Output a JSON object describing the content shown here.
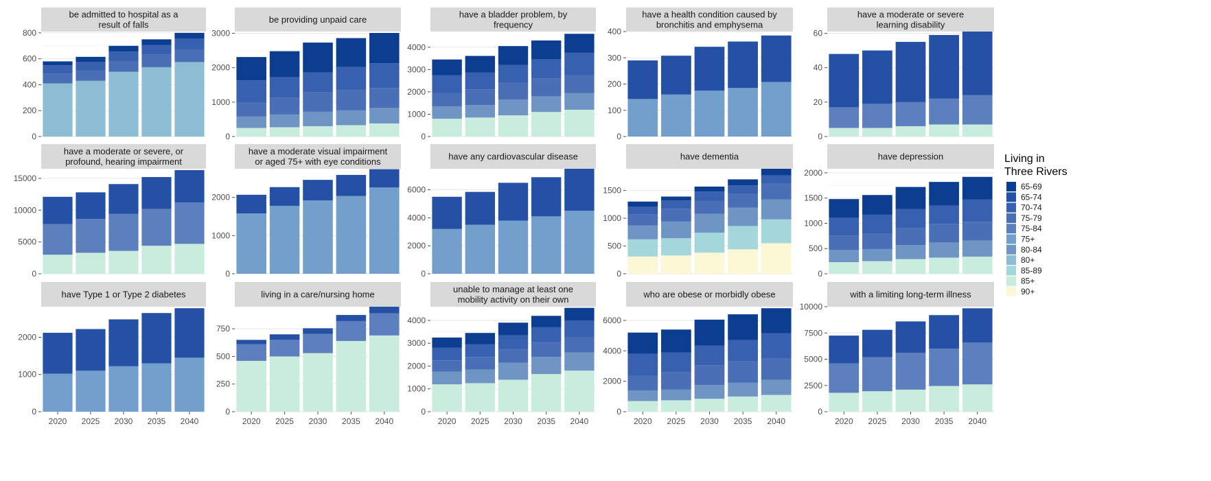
{
  "legend": {
    "title_lines": [
      "Living in",
      "Three Rivers"
    ],
    "items": [
      {
        "label": "65-69",
        "color": "#0b3d91"
      },
      {
        "label": "65-74",
        "color": "#2450a6"
      },
      {
        "label": "70-74",
        "color": "#3760ae"
      },
      {
        "label": "75-79",
        "color": "#4a6fb6"
      },
      {
        "label": "75-84",
        "color": "#5c7fbd"
      },
      {
        "label": "75+",
        "color": "#729fcb"
      },
      {
        "label": "80-84",
        "color": "#6f95c5"
      },
      {
        "label": "80+",
        "color": "#8dbdd2"
      },
      {
        "label": "85-89",
        "color": "#a3d7dc"
      },
      {
        "label": "85+",
        "color": "#c8eddd"
      },
      {
        "label": "90+",
        "color": "#fcf8d6"
      }
    ]
  },
  "chart_data": [
    {
      "type": "bar",
      "stacked": true,
      "title_lines": [
        "be admitted to hospital as a",
        "result of falls"
      ],
      "categories": [
        "2020",
        "2025",
        "2030",
        "2035",
        "2040"
      ],
      "yticks": [
        0,
        200,
        400,
        600,
        800
      ],
      "ytick_labels": [
        "0",
        "200",
        "400",
        "600",
        "800"
      ],
      "ylim": [
        0,
        810
      ],
      "series": [
        {
          "name": "80+",
          "values": [
            410,
            430,
            500,
            535,
            575
          ]
        },
        {
          "name": "75-79",
          "values": [
            75,
            75,
            80,
            100,
            95
          ]
        },
        {
          "name": "70-74",
          "values": [
            65,
            70,
            75,
            70,
            85
          ]
        },
        {
          "name": "65-69",
          "values": [
            30,
            40,
            45,
            45,
            45
          ]
        }
      ]
    },
    {
      "type": "bar",
      "stacked": true,
      "title_lines": [
        "be providing unpaid care"
      ],
      "categories": [
        "2020",
        "2025",
        "2030",
        "2035",
        "2040"
      ],
      "yticks": [
        0,
        1000,
        2000,
        3000
      ],
      "ytick_labels": [
        "0",
        "1000",
        "2000",
        "3000"
      ],
      "ylim": [
        0,
        3050
      ],
      "series": [
        {
          "name": "85+",
          "values": [
            250,
            270,
            300,
            330,
            380
          ]
        },
        {
          "name": "80-84",
          "values": [
            330,
            370,
            420,
            430,
            450
          ]
        },
        {
          "name": "75-79",
          "values": [
            400,
            480,
            560,
            580,
            580
          ]
        },
        {
          "name": "70-74",
          "values": [
            650,
            600,
            580,
            680,
            720
          ]
        },
        {
          "name": "65-69",
          "values": [
            680,
            760,
            870,
            840,
            880
          ]
        }
      ]
    },
    {
      "type": "bar",
      "stacked": true,
      "title_lines": [
        "have a bladder problem, by",
        "frequency"
      ],
      "categories": [
        "2020",
        "2025",
        "2030",
        "2035",
        "2040"
      ],
      "yticks": [
        0,
        1000,
        2000,
        3000,
        4000
      ],
      "ytick_labels": [
        "0",
        "1000",
        "2000",
        "3000",
        "4000"
      ],
      "ylim": [
        0,
        4700
      ],
      "series": [
        {
          "name": "85+",
          "values": [
            800,
            850,
            950,
            1100,
            1200
          ]
        },
        {
          "name": "80-84",
          "values": [
            550,
            560,
            700,
            700,
            750
          ]
        },
        {
          "name": "75-79",
          "values": [
            600,
            700,
            750,
            800,
            800
          ]
        },
        {
          "name": "70-74",
          "values": [
            800,
            750,
            800,
            850,
            1000
          ]
        },
        {
          "name": "65-69",
          "values": [
            700,
            750,
            850,
            850,
            850
          ]
        }
      ]
    },
    {
      "type": "bar",
      "stacked": true,
      "title_lines": [
        "have a health condition caused by",
        "bronchitis and emphysema"
      ],
      "categories": [
        "2020",
        "2025",
        "2030",
        "2035",
        "2040"
      ],
      "yticks": [
        0,
        100,
        200,
        300,
        400
      ],
      "ytick_labels": [
        "0",
        "100",
        "200",
        "300",
        "400"
      ],
      "ylim": [
        0,
        400
      ],
      "series": [
        {
          "name": "75+",
          "values": [
            143,
            160,
            175,
            185,
            208
          ]
        },
        {
          "name": "65-74",
          "values": [
            147,
            148,
            167,
            177,
            177
          ]
        }
      ]
    },
    {
      "type": "bar",
      "stacked": true,
      "title_lines": [
        "have a moderate or severe",
        "learning disability"
      ],
      "categories": [
        "2020",
        "2025",
        "2030",
        "2035",
        "2040"
      ],
      "yticks": [
        0,
        20,
        40,
        60
      ],
      "ytick_labels": [
        "0",
        "20",
        "40",
        "60"
      ],
      "ylim": [
        0,
        61
      ],
      "series": [
        {
          "name": "85+",
          "values": [
            5,
            5,
            6,
            7,
            7
          ]
        },
        {
          "name": "75-84",
          "values": [
            12,
            14,
            14,
            15,
            17
          ]
        },
        {
          "name": "65-74",
          "values": [
            31,
            31,
            35,
            37,
            37
          ]
        }
      ]
    },
    {
      "type": "bar",
      "stacked": true,
      "title_lines": [
        "have a moderate or severe, or",
        "profound, hearing impairment"
      ],
      "categories": [
        "2020",
        "2025",
        "2030",
        "2035",
        "2040"
      ],
      "yticks": [
        0,
        5000,
        10000,
        15000
      ],
      "ytick_labels": [
        "0",
        "5000",
        "10000",
        "15000"
      ],
      "ylim": [
        0,
        16500
      ],
      "series": [
        {
          "name": "85+",
          "values": [
            3000,
            3300,
            3600,
            4400,
            4700
          ]
        },
        {
          "name": "75-84",
          "values": [
            4800,
            5300,
            5800,
            5800,
            6500
          ]
        },
        {
          "name": "65-74",
          "values": [
            4300,
            4200,
            4700,
            5000,
            5100
          ]
        }
      ]
    },
    {
      "type": "bar",
      "stacked": true,
      "title_lines": [
        "have a moderate visual impairment",
        "or aged 75+ with eye conditions"
      ],
      "categories": [
        "2020",
        "2025",
        "2030",
        "2035",
        "2040"
      ],
      "yticks": [
        0,
        1000,
        2000
      ],
      "ytick_labels": [
        "0",
        "1000",
        "2000"
      ],
      "ylim": [
        0,
        2750
      ],
      "series": [
        {
          "name": "75+",
          "values": [
            1580,
            1780,
            1920,
            2040,
            2260
          ]
        },
        {
          "name": "65-74",
          "values": [
            490,
            490,
            540,
            550,
            480
          ]
        }
      ]
    },
    {
      "type": "bar",
      "stacked": true,
      "title_lines": [
        "have any cardiovascular disease"
      ],
      "categories": [
        "2020",
        "2025",
        "2030",
        "2035",
        "2040"
      ],
      "yticks": [
        0,
        2000,
        4000,
        6000
      ],
      "ytick_labels": [
        "0",
        "2000",
        "4000",
        "6000"
      ],
      "ylim": [
        0,
        7500
      ],
      "series": [
        {
          "name": "75+",
          "values": [
            3200,
            3500,
            3800,
            4100,
            4500
          ]
        },
        {
          "name": "65-74",
          "values": [
            2300,
            2350,
            2700,
            2800,
            3000
          ]
        }
      ]
    },
    {
      "type": "bar",
      "stacked": true,
      "title_lines": [
        "have dementia"
      ],
      "categories": [
        "2020",
        "2025",
        "2030",
        "2035",
        "2040"
      ],
      "yticks": [
        0,
        500,
        1000,
        1500
      ],
      "ytick_labels": [
        "0",
        "500",
        "1000",
        "1500"
      ],
      "ylim": [
        0,
        1890
      ],
      "series": [
        {
          "name": "90+",
          "values": [
            310,
            330,
            380,
            440,
            550
          ]
        },
        {
          "name": "85-89",
          "values": [
            310,
            310,
            360,
            420,
            430
          ]
        },
        {
          "name": "80-84",
          "values": [
            250,
            300,
            340,
            330,
            360
          ]
        },
        {
          "name": "75-79",
          "values": [
            200,
            230,
            230,
            250,
            280
          ]
        },
        {
          "name": "70-74",
          "values": [
            140,
            150,
            170,
            150,
            150
          ]
        },
        {
          "name": "65-69",
          "values": [
            90,
            70,
            90,
            110,
            120
          ]
        }
      ]
    },
    {
      "type": "bar",
      "stacked": true,
      "title_lines": [
        "have depression"
      ],
      "categories": [
        "2020",
        "2025",
        "2030",
        "2035",
        "2040"
      ],
      "yticks": [
        0,
        500,
        1000,
        1500,
        2000
      ],
      "ytick_labels": [
        "0",
        "500",
        "1000",
        "1500",
        "2000"
      ],
      "ylim": [
        0,
        2080
      ],
      "series": [
        {
          "name": "85+",
          "values": [
            230,
            250,
            290,
            320,
            340
          ]
        },
        {
          "name": "80-84",
          "values": [
            240,
            240,
            280,
            300,
            320
          ]
        },
        {
          "name": "75-79",
          "values": [
            290,
            300,
            330,
            370,
            370
          ]
        },
        {
          "name": "70-74",
          "values": [
            350,
            380,
            380,
            360,
            440
          ]
        },
        {
          "name": "65-69",
          "values": [
            370,
            390,
            440,
            470,
            450
          ]
        }
      ]
    },
    {
      "type": "bar",
      "stacked": true,
      "title_lines": [
        "have Type 1 or Type 2 diabetes"
      ],
      "categories": [
        "2020",
        "2025",
        "2030",
        "2035",
        "2040"
      ],
      "yticks": [
        0,
        1000,
        2000
      ],
      "ytick_labels": [
        "0",
        "1000",
        "2000"
      ],
      "ylim": [
        0,
        2820
      ],
      "series": [
        {
          "name": "75+",
          "values": [
            1020,
            1100,
            1220,
            1300,
            1450
          ]
        },
        {
          "name": "65-74",
          "values": [
            1100,
            1120,
            1260,
            1350,
            1330
          ]
        }
      ]
    },
    {
      "type": "bar",
      "stacked": true,
      "title_lines": [
        "living in a care/nursing home"
      ],
      "categories": [
        "2020",
        "2025",
        "2030",
        "2035",
        "2040"
      ],
      "yticks": [
        0,
        250,
        500,
        750
      ],
      "ytick_labels": [
        "0",
        "250",
        "500",
        "750"
      ],
      "ylim": [
        0,
        950
      ],
      "series": [
        {
          "name": "85+",
          "values": [
            460,
            500,
            530,
            640,
            690
          ]
        },
        {
          "name": "75-84",
          "values": [
            150,
            150,
            175,
            180,
            200
          ]
        },
        {
          "name": "65-74",
          "values": [
            40,
            50,
            50,
            55,
            60
          ]
        }
      ]
    },
    {
      "type": "bar",
      "stacked": true,
      "title_lines": [
        "unable to manage at least one",
        "mobility activity on their own"
      ],
      "categories": [
        "2020",
        "2025",
        "2030",
        "2035",
        "2040"
      ],
      "yticks": [
        0,
        1000,
        2000,
        3000,
        4000
      ],
      "ytick_labels": [
        "0",
        "1000",
        "2000",
        "3000",
        "4000"
      ],
      "ylim": [
        0,
        4600
      ],
      "series": [
        {
          "name": "85+",
          "values": [
            1200,
            1250,
            1400,
            1650,
            1800
          ]
        },
        {
          "name": "80-84",
          "values": [
            550,
            600,
            750,
            750,
            800
          ]
        },
        {
          "name": "75-79",
          "values": [
            500,
            550,
            600,
            650,
            650
          ]
        },
        {
          "name": "70-74",
          "values": [
            550,
            550,
            600,
            650,
            750
          ]
        },
        {
          "name": "65-69",
          "values": [
            450,
            500,
            550,
            500,
            550
          ]
        }
      ]
    },
    {
      "type": "bar",
      "stacked": true,
      "title_lines": [
        "who are obese or morbidly obese"
      ],
      "categories": [
        "2020",
        "2025",
        "2030",
        "2035",
        "2040"
      ],
      "yticks": [
        0,
        2000,
        4000,
        6000
      ],
      "ytick_labels": [
        "0",
        "2000",
        "4000",
        "6000"
      ],
      "ylim": [
        0,
        6900
      ],
      "series": [
        {
          "name": "85+",
          "values": [
            700,
            750,
            850,
            1000,
            1100
          ]
        },
        {
          "name": "80-84",
          "values": [
            700,
            700,
            900,
            900,
            1000
          ]
        },
        {
          "name": "75-79",
          "values": [
            950,
            1150,
            1300,
            1400,
            1400
          ]
        },
        {
          "name": "70-74",
          "values": [
            1450,
            1300,
            1300,
            1400,
            1650
          ]
        },
        {
          "name": "65-69",
          "values": [
            1400,
            1500,
            1700,
            1700,
            1650
          ]
        }
      ]
    },
    {
      "type": "bar",
      "stacked": true,
      "title_lines": [
        "with a limiting long-term illness"
      ],
      "categories": [
        "2020",
        "2025",
        "2030",
        "2035",
        "2040"
      ],
      "yticks": [
        0,
        2500,
        5000,
        7500,
        10000
      ],
      "ytick_labels": [
        "0",
        "2500",
        "5000",
        "7500",
        "10000"
      ],
      "ylim": [
        0,
        10000
      ],
      "series": [
        {
          "name": "85+",
          "values": [
            1800,
            1950,
            2100,
            2450,
            2600
          ]
        },
        {
          "name": "75-84",
          "values": [
            2800,
            3250,
            3500,
            3550,
            4000
          ]
        },
        {
          "name": "65-74",
          "values": [
            2650,
            2600,
            3000,
            3200,
            3250
          ]
        }
      ]
    }
  ]
}
